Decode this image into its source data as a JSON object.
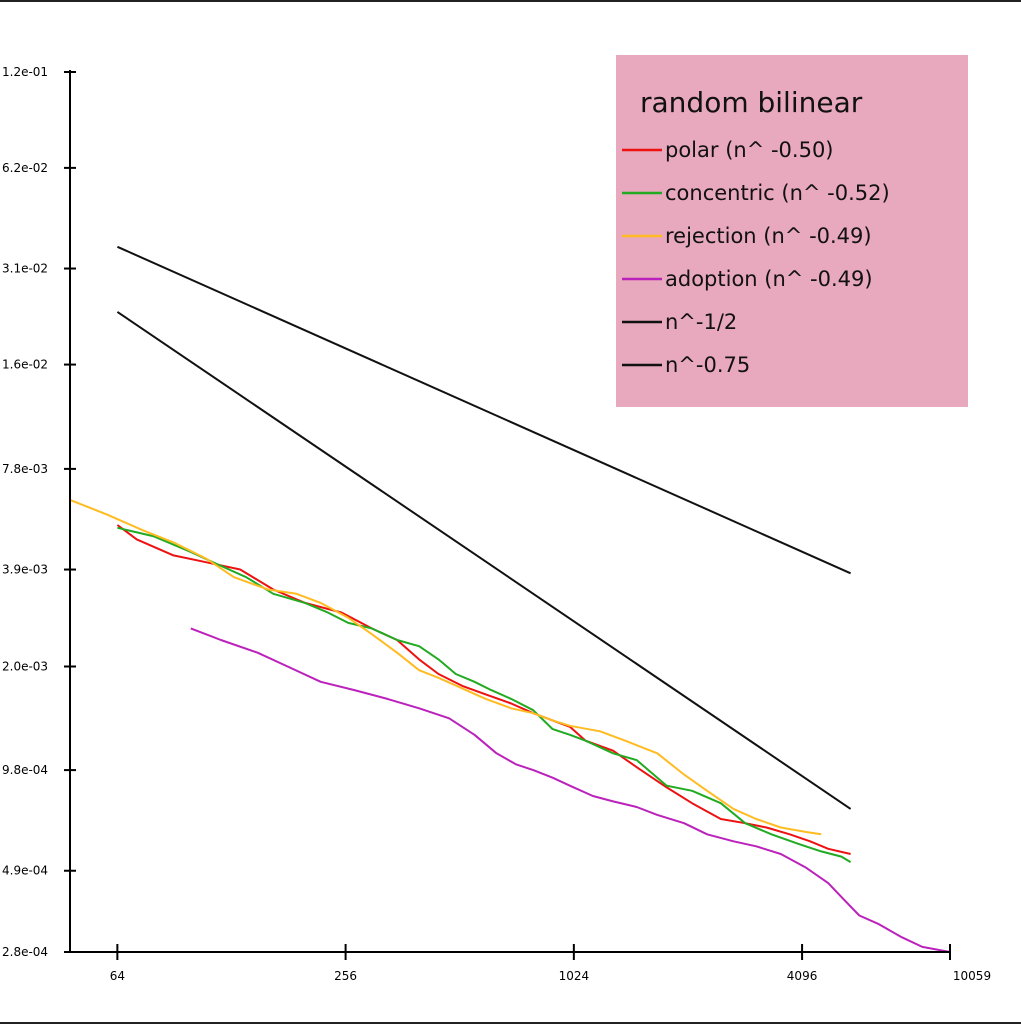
{
  "chart_data": {
    "type": "line",
    "title": "",
    "xlabel": "",
    "ylabel": "",
    "xscale": "log2",
    "yscale": "log",
    "xlim": [
      48,
      10059
    ],
    "ylim": [
      0.00028,
      0.12
    ],
    "grid": false,
    "background_color": "#ffffff",
    "x_ticks": [
      {
        "value": 64,
        "label": "64"
      },
      {
        "value": 256,
        "label": "256"
      },
      {
        "value": 1024,
        "label": "1024"
      },
      {
        "value": 4096,
        "label": "4096"
      },
      {
        "value": 10059,
        "label": "10059"
      }
    ],
    "y_ticks": [
      {
        "value": 0.00028,
        "label": "2.8e-04"
      },
      {
        "value": 0.00049,
        "label": "4.9e-04"
      },
      {
        "value": 0.00098,
        "label": "9.8e-04"
      },
      {
        "value": 0.002,
        "label": "2.0e-03"
      },
      {
        "value": 0.0039,
        "label": "3.9e-03"
      },
      {
        "value": 0.0078,
        "label": "7.8e-03"
      },
      {
        "value": 0.016,
        "label": "1.6e-02"
      },
      {
        "value": 0.031,
        "label": "3.1e-02"
      },
      {
        "value": 0.062,
        "label": "6.2e-02"
      },
      {
        "value": 0.12,
        "label": "1.2e-01"
      }
    ],
    "legend": {
      "title": "random bilinear",
      "placement": "top-right",
      "background": "#e8a8bd"
    },
    "series": [
      {
        "name": "polar (n^ -0.50)",
        "color": "#ee1111",
        "x": [
          64,
          72,
          90,
          110,
          135,
          165,
          200,
          250,
          300,
          350,
          400,
          450,
          520,
          600,
          700,
          800,
          900,
          1000,
          1100,
          1300,
          1500,
          1800,
          2100,
          2500,
          2900,
          3300,
          3800,
          4300,
          4800,
          5500
        ],
        "y": [
          0.0053,
          0.0048,
          0.0043,
          0.0041,
          0.0039,
          0.0034,
          0.0031,
          0.0029,
          0.0026,
          0.0024,
          0.0021,
          0.0019,
          0.00175,
          0.00165,
          0.00155,
          0.00145,
          0.00138,
          0.00132,
          0.0012,
          0.00112,
          0.001,
          0.00087,
          0.00078,
          0.0007,
          0.00068,
          0.00066,
          0.00063,
          0.0006,
          0.00057,
          0.00055
        ]
      },
      {
        "name": "concentric (n^ -0.52)",
        "color": "#22aa22",
        "x": [
          64,
          80,
          100,
          120,
          140,
          165,
          200,
          230,
          260,
          300,
          350,
          400,
          450,
          500,
          560,
          620,
          700,
          800,
          900,
          1000,
          1100,
          1300,
          1500,
          1800,
          2100,
          2500,
          2900,
          3400,
          4000,
          4600,
          5200,
          5500
        ],
        "y": [
          0.0052,
          0.0049,
          0.0044,
          0.004,
          0.0037,
          0.0033,
          0.0031,
          0.0029,
          0.0027,
          0.0026,
          0.0024,
          0.0023,
          0.0021,
          0.0019,
          0.0018,
          0.0017,
          0.0016,
          0.00148,
          0.0013,
          0.00125,
          0.0012,
          0.0011,
          0.00105,
          0.00088,
          0.00085,
          0.00078,
          0.00068,
          0.00063,
          0.00059,
          0.00056,
          0.00054,
          0.00052
        ]
      },
      {
        "name": "rejection (n^ -0.49)",
        "color": "#ffbb22",
        "x": [
          48,
          60,
          75,
          90,
          110,
          130,
          160,
          190,
          220,
          260,
          300,
          350,
          400,
          450,
          520,
          600,
          700,
          800,
          900,
          1000,
          1200,
          1400,
          1700,
          2000,
          2300,
          2700,
          3100,
          3600,
          4200,
          4600
        ],
        "y": [
          0.0063,
          0.0057,
          0.0051,
          0.0047,
          0.0042,
          0.0037,
          0.0034,
          0.0033,
          0.0031,
          0.0028,
          0.0025,
          0.0022,
          0.00195,
          0.00185,
          0.00172,
          0.0016,
          0.0015,
          0.00145,
          0.00138,
          0.00133,
          0.00128,
          0.0012,
          0.0011,
          0.00095,
          0.00085,
          0.00075,
          0.0007,
          0.00066,
          0.00064,
          0.00063
        ]
      },
      {
        "name": "adoption (n^ -0.49)",
        "color": "#bb22bb",
        "x": [
          100,
          120,
          150,
          180,
          220,
          270,
          330,
          400,
          480,
          560,
          640,
          720,
          800,
          900,
          1000,
          1150,
          1300,
          1500,
          1700,
          2000,
          2300,
          2700,
          3100,
          3600,
          4200,
          4800,
          5300,
          5800,
          6500,
          7500,
          8500,
          10059
        ],
        "y": [
          0.0026,
          0.0024,
          0.0022,
          0.002,
          0.0018,
          0.0017,
          0.0016,
          0.0015,
          0.0014,
          0.00125,
          0.0011,
          0.00102,
          0.00098,
          0.00093,
          0.00088,
          0.00082,
          0.00079,
          0.00076,
          0.00072,
          0.00068,
          0.00063,
          0.0006,
          0.00058,
          0.00055,
          0.0005,
          0.00045,
          0.0004,
          0.00036,
          0.00034,
          0.00031,
          0.00029,
          0.00028
        ]
      },
      {
        "name": "n^-1/2",
        "color": "#111111",
        "x": [
          64,
          5500
        ],
        "y": [
          0.036,
          0.0038
        ]
      },
      {
        "name": "n^-0.75",
        "color": "#111111",
        "x": [
          64,
          5500
        ],
        "y": [
          0.023,
          0.00075
        ]
      }
    ]
  }
}
